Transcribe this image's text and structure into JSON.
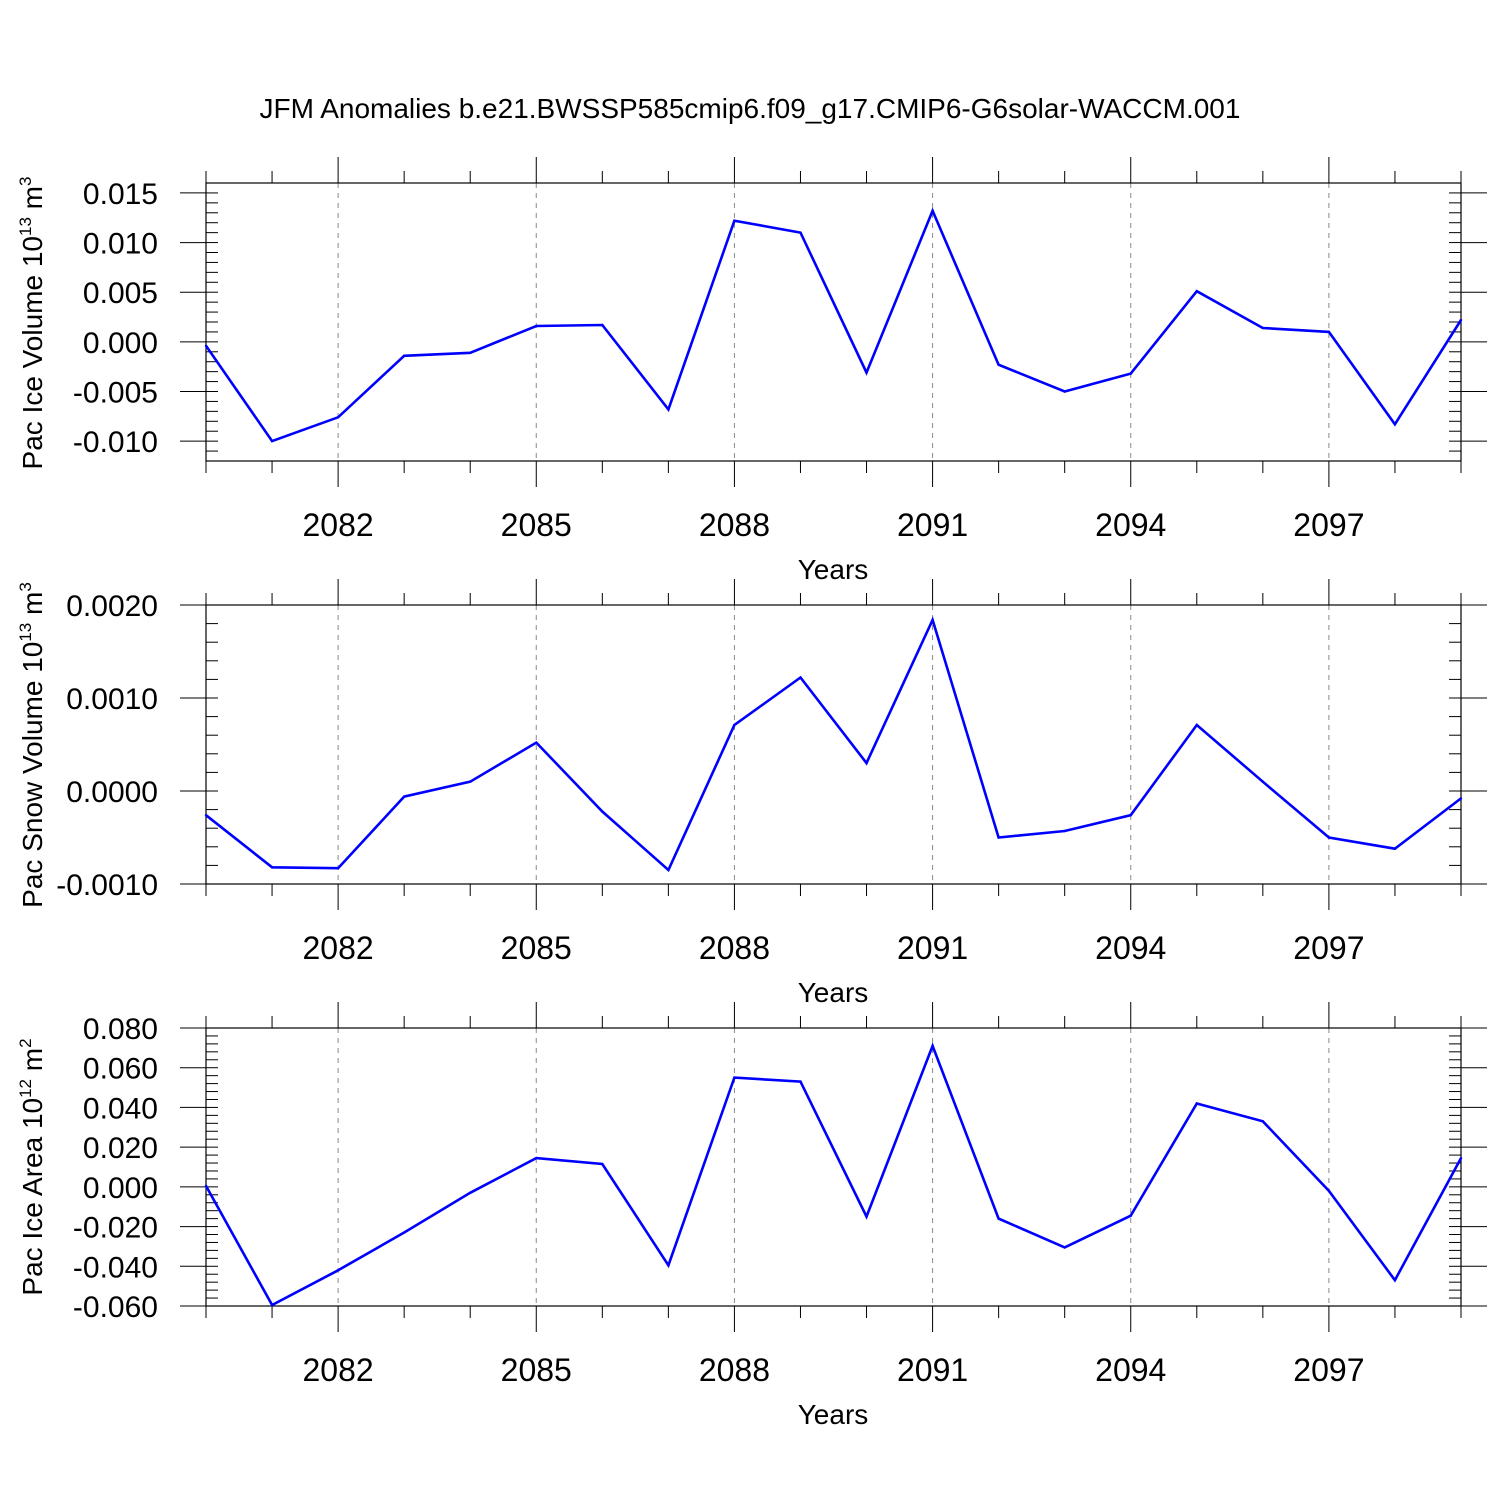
{
  "figure": {
    "title": "JFM Anomalies b.e21.BWSSP585cmip6.f09_g17.CMIP6-G6solar-WACCM.001"
  },
  "line_color": "#0000ff",
  "chart_data": [
    {
      "type": "line",
      "title": "JFM Anomalies b.e21.BWSSP585cmip6.f09_g17.CMIP6-G6solar-WACCM.001",
      "xlabel": "Years",
      "ylabel_base": "Pac Ice Volume 10",
      "ylabel_exp": "13",
      "ylabel_unit": " m",
      "ylabel_unit_exp": "3",
      "xlim": [
        2080,
        2099
      ],
      "ylim": [
        -0.012,
        0.016
      ],
      "x_ticks": [
        2082,
        2085,
        2088,
        2091,
        2094,
        2097
      ],
      "y_ticks": [
        -0.01,
        -0.005,
        0.0,
        0.005,
        0.01,
        0.015
      ],
      "y_tick_labels": [
        "-0.010",
        "-0.005",
        "0.000",
        "0.005",
        "0.010",
        "0.015"
      ],
      "grid": "vertical dashed at major x ticks",
      "x": [
        2080,
        2081,
        2082,
        2083,
        2084,
        2085,
        2086,
        2087,
        2088,
        2089,
        2090,
        2091,
        2092,
        2093,
        2094,
        2095,
        2096,
        2097,
        2098,
        2099
      ],
      "values": [
        -0.0004,
        -0.01,
        -0.0076,
        -0.0014,
        -0.0011,
        0.0016,
        0.0017,
        -0.0068,
        0.0122,
        0.011,
        -0.0031,
        0.0132,
        -0.0023,
        -0.005,
        -0.0032,
        0.0051,
        0.0014,
        0.001,
        -0.0083,
        0.0022
      ]
    },
    {
      "type": "line",
      "xlabel": "Years",
      "ylabel_base": "Pac Snow Volume 10",
      "ylabel_exp": "13",
      "ylabel_unit": " m",
      "ylabel_unit_exp": "3",
      "xlim": [
        2080,
        2099
      ],
      "ylim": [
        -0.001,
        0.002
      ],
      "x_ticks": [
        2082,
        2085,
        2088,
        2091,
        2094,
        2097
      ],
      "y_ticks": [
        -0.001,
        0.0,
        0.001,
        0.002
      ],
      "y_tick_labels": [
        "-0.0010",
        "0.0000",
        "0.0010",
        "0.0020"
      ],
      "grid": "vertical dashed at major x ticks",
      "x": [
        2080,
        2081,
        2082,
        2083,
        2084,
        2085,
        2086,
        2087,
        2088,
        2089,
        2090,
        2091,
        2092,
        2093,
        2094,
        2095,
        2096,
        2097,
        2098,
        2099
      ],
      "values": [
        -0.00026,
        -0.00082,
        -0.00083,
        -6e-05,
        0.0001,
        0.00052,
        -0.00022,
        -0.00085,
        0.00071,
        0.00122,
        0.0003,
        0.00184,
        -0.0005,
        -0.00043,
        -0.00026,
        0.00071,
        0.0001,
        -0.0005,
        -0.00062,
        -8e-05
      ]
    },
    {
      "type": "line",
      "xlabel": "Years",
      "ylabel_base": "Pac Ice Area 10",
      "ylabel_exp": "12",
      "ylabel_unit": " m",
      "ylabel_unit_exp": "2",
      "xlim": [
        2080,
        2099
      ],
      "ylim": [
        -0.06,
        0.08
      ],
      "x_ticks": [
        2082,
        2085,
        2088,
        2091,
        2094,
        2097
      ],
      "y_ticks": [
        -0.06,
        -0.04,
        -0.02,
        0.0,
        0.02,
        0.04,
        0.06,
        0.08
      ],
      "y_tick_labels": [
        "-0.060",
        "-0.040",
        "-0.020",
        "0.000",
        "0.020",
        "0.040",
        "0.060",
        "0.080"
      ],
      "grid": "vertical dashed at major x ticks",
      "x": [
        2080,
        2081,
        2082,
        2083,
        2084,
        2085,
        2086,
        2087,
        2088,
        2089,
        2090,
        2091,
        2092,
        2093,
        2094,
        2095,
        2096,
        2097,
        2098,
        2099
      ],
      "values": [
        0.0005,
        -0.0595,
        -0.042,
        -0.023,
        -0.003,
        0.0145,
        0.0115,
        -0.0395,
        0.055,
        0.053,
        -0.015,
        0.071,
        -0.016,
        -0.0305,
        -0.0145,
        0.042,
        0.033,
        -0.002,
        -0.047,
        0.0145
      ]
    }
  ]
}
